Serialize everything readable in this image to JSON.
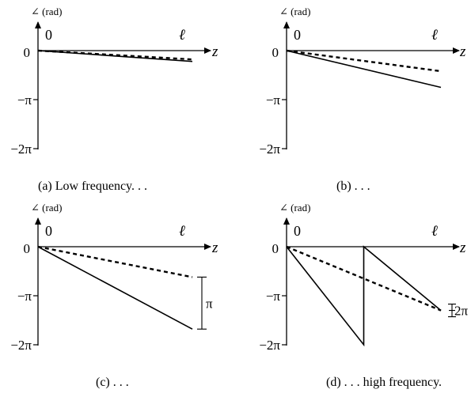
{
  "figure": {
    "y_axis_label": "∠ (rad)",
    "origin_label": "0",
    "length_label": "ℓ",
    "x_axis_label": "z",
    "y_ticks": [
      {
        "value": 0,
        "label": "0"
      },
      {
        "value": -1,
        "label": "−π"
      },
      {
        "value": -2,
        "label": "−2π"
      }
    ],
    "panels": [
      {
        "id": "a",
        "caption": "(a) Low frequency. . .",
        "dashed_end": -0.18,
        "solid_end": -0.22,
        "solid_wraps": false,
        "annotation": ""
      },
      {
        "id": "b",
        "caption": "(b) . . .",
        "dashed_end": -0.42,
        "solid_end": -0.75,
        "solid_wraps": false,
        "annotation": ""
      },
      {
        "id": "c",
        "caption": "(c) . . .",
        "dashed_end": -0.62,
        "solid_end": -1.68,
        "solid_wraps": false,
        "annotation": "π"
      },
      {
        "id": "d",
        "caption": "(d) . . . high frequency.",
        "dashed_end": -1.3,
        "solid_end": -2.0,
        "solid_wraps": true,
        "wrap_fraction": 0.5,
        "solid_final": -1.3,
        "annotation": "2π"
      }
    ]
  }
}
